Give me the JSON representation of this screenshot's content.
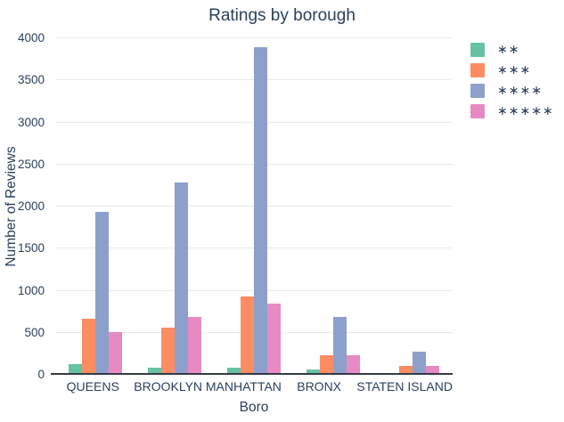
{
  "title": "Ratings by borough",
  "colors": {
    "text": "#2a3f5f",
    "gridline": "#e9e9e9",
    "axis_line": "#343a46",
    "background": "#ffffff"
  },
  "chart_data": {
    "type": "bar",
    "title": "Ratings by borough",
    "xlabel": "Boro",
    "ylabel": "Number of Reviews",
    "categories": [
      "QUEENS",
      "BROOKLYN",
      "MANHATTAN",
      "BRONX",
      "STATEN ISLAND"
    ],
    "series": [
      {
        "name": "**",
        "color": "#66c2a5",
        "values": [
          130,
          80,
          85,
          60,
          25
        ]
      },
      {
        "name": "***",
        "color": "#fc8d62",
        "values": [
          670,
          560,
          930,
          230,
          105
        ]
      },
      {
        "name": "****",
        "color": "#8da0cb",
        "values": [
          1940,
          2290,
          3890,
          690,
          280
        ]
      },
      {
        "name": "*****",
        "color": "#e78ac3",
        "values": [
          510,
          690,
          850,
          230,
          105
        ]
      }
    ],
    "ylim": [
      0,
      4000
    ],
    "yticks": [
      0,
      500,
      1000,
      1500,
      2000,
      2500,
      3000,
      3500,
      4000
    ],
    "grid": true,
    "legend_position": "right"
  }
}
